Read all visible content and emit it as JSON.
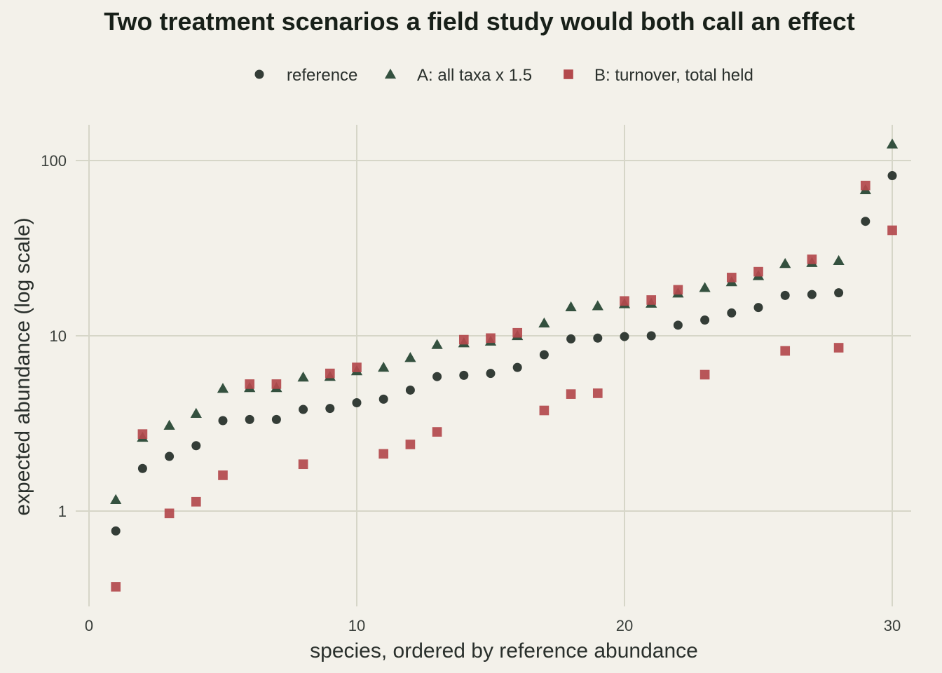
{
  "chart_data": {
    "type": "scatter",
    "title": "Two treatment scenarios a field study would both call an effect",
    "xlabel": "species, ordered by reference abundance",
    "ylabel": "expected abundance (log scale)",
    "x_ticks": [
      0,
      10,
      20,
      30
    ],
    "x_tick_labels": [
      "0",
      "10",
      "20",
      "30"
    ],
    "y_ticks": [
      1,
      10,
      100
    ],
    "y_tick_labels": [
      "1",
      "10",
      "100"
    ],
    "y_scale": "log",
    "xlim": [
      0,
      31.4
    ],
    "ylim": [
      0.3,
      160
    ],
    "grid": true,
    "legend_position": "top",
    "series": [
      {
        "name": "reference",
        "marker": "circle",
        "color": "#343d37",
        "x": [
          1,
          2,
          3,
          4,
          5,
          6,
          7,
          8,
          9,
          10,
          11,
          12,
          13,
          14,
          15,
          16,
          17,
          18,
          19,
          20,
          21,
          22,
          23,
          24,
          25,
          26,
          27,
          28,
          29,
          30
        ],
        "values": [
          0.77,
          1.75,
          2.05,
          2.36,
          3.28,
          3.33,
          3.33,
          3.8,
          3.85,
          4.15,
          4.35,
          4.9,
          5.85,
          5.95,
          6.1,
          6.6,
          7.8,
          9.6,
          9.7,
          9.9,
          10.0,
          11.5,
          12.3,
          13.5,
          14.5,
          17.0,
          17.2,
          17.6,
          45,
          82
        ]
      },
      {
        "name": "A: all taxa x 1.5",
        "marker": "triangle",
        "color": "#34513f",
        "x": [
          1,
          2,
          3,
          4,
          5,
          6,
          7,
          8,
          9,
          10,
          11,
          12,
          13,
          14,
          15,
          16,
          17,
          18,
          19,
          20,
          21,
          22,
          23,
          24,
          25,
          26,
          27,
          28,
          29,
          30
        ],
        "values": [
          1.16,
          2.63,
          3.08,
          3.6,
          5.0,
          5.05,
          5.05,
          5.8,
          5.85,
          6.3,
          6.6,
          7.5,
          8.9,
          9.1,
          9.3,
          10.0,
          11.8,
          14.6,
          14.8,
          15.2,
          15.3,
          17.5,
          18.8,
          20.3,
          22.0,
          25.8,
          26.1,
          26.8,
          68,
          124
        ]
      },
      {
        "name": "B: turnover, total held",
        "marker": "square",
        "color": "#b3494c",
        "x": [
          1,
          2,
          3,
          4,
          5,
          6,
          7,
          8,
          9,
          10,
          11,
          12,
          13,
          14,
          15,
          16,
          17,
          18,
          19,
          20,
          21,
          22,
          23,
          24,
          25,
          26,
          27,
          28,
          29,
          30
        ],
        "values": [
          0.37,
          2.75,
          0.97,
          1.13,
          1.6,
          5.3,
          5.3,
          1.85,
          6.1,
          6.6,
          2.12,
          2.4,
          2.83,
          9.5,
          9.7,
          10.4,
          3.75,
          4.65,
          4.7,
          15.8,
          16.0,
          18.3,
          6.0,
          21.5,
          23.2,
          8.2,
          27.3,
          8.55,
          72,
          40
        ]
      }
    ]
  }
}
